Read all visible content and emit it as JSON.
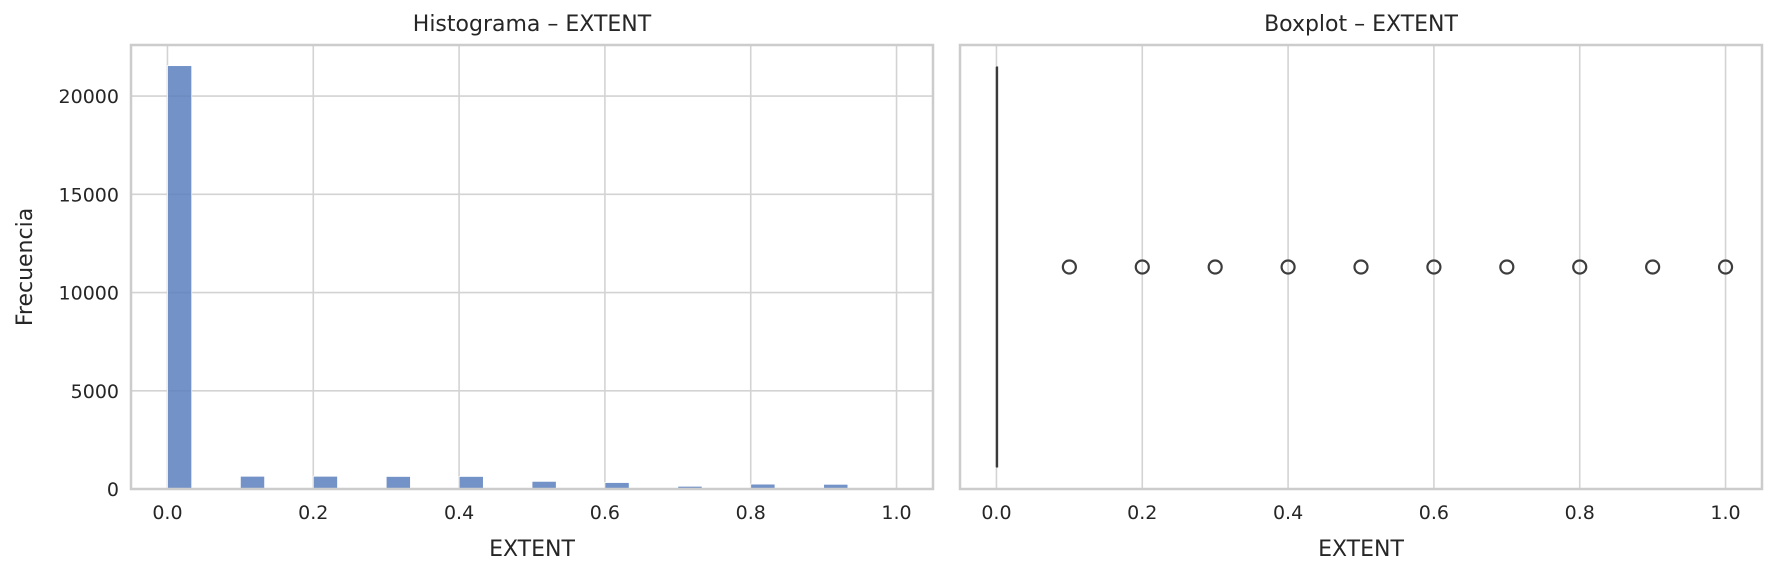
{
  "chart_data": [
    {
      "type": "bar",
      "title": "Histograma – EXTENT",
      "xlabel": "EXTENT",
      "ylabel": "Frecuencia",
      "xlim": [
        -0.05,
        1.05
      ],
      "ylim": [
        0,
        22600
      ],
      "xticks": [
        0.0,
        0.2,
        0.4,
        0.6,
        0.8,
        1.0
      ],
      "xtick_labels": [
        "0.0",
        "0.2",
        "0.4",
        "0.6",
        "0.8",
        "1.0"
      ],
      "yticks": [
        0,
        5000,
        10000,
        15000,
        20000
      ],
      "ytick_labels": [
        "0",
        "5000",
        "10000",
        "15000",
        "20000"
      ],
      "grid": true,
      "bar_color": "#5b7fbd",
      "bins": [
        {
          "x0": 0.0,
          "x1": 0.0333,
          "count": 21550
        },
        {
          "x0": 0.1,
          "x1": 0.1333,
          "count": 650
        },
        {
          "x0": 0.2,
          "x1": 0.2333,
          "count": 650
        },
        {
          "x0": 0.3,
          "x1": 0.3333,
          "count": 640
        },
        {
          "x0": 0.4,
          "x1": 0.4333,
          "count": 640
        },
        {
          "x0": 0.5,
          "x1": 0.5333,
          "count": 390
        },
        {
          "x0": 0.6,
          "x1": 0.6333,
          "count": 330
        },
        {
          "x0": 0.7,
          "x1": 0.7333,
          "count": 140
        },
        {
          "x0": 0.8,
          "x1": 0.8333,
          "count": 250
        },
        {
          "x0": 0.9,
          "x1": 0.9333,
          "count": 240
        }
      ]
    },
    {
      "type": "boxplot",
      "title": "Boxplot – EXTENT",
      "xlabel": "EXTENT",
      "xlim": [
        -0.05,
        1.05
      ],
      "xticks": [
        0.0,
        0.2,
        0.4,
        0.6,
        0.8,
        1.0
      ],
      "xtick_labels": [
        "0.0",
        "0.2",
        "0.4",
        "0.6",
        "0.8",
        "1.0"
      ],
      "grid": true,
      "median": 0.0,
      "q1": 0.0,
      "q3": 0.0,
      "whisker_low": 0.0,
      "whisker_high": 0.0,
      "outliers": [
        0.1,
        0.2,
        0.3,
        0.4,
        0.5,
        0.6,
        0.7,
        0.8,
        0.9,
        1.0
      ]
    }
  ]
}
